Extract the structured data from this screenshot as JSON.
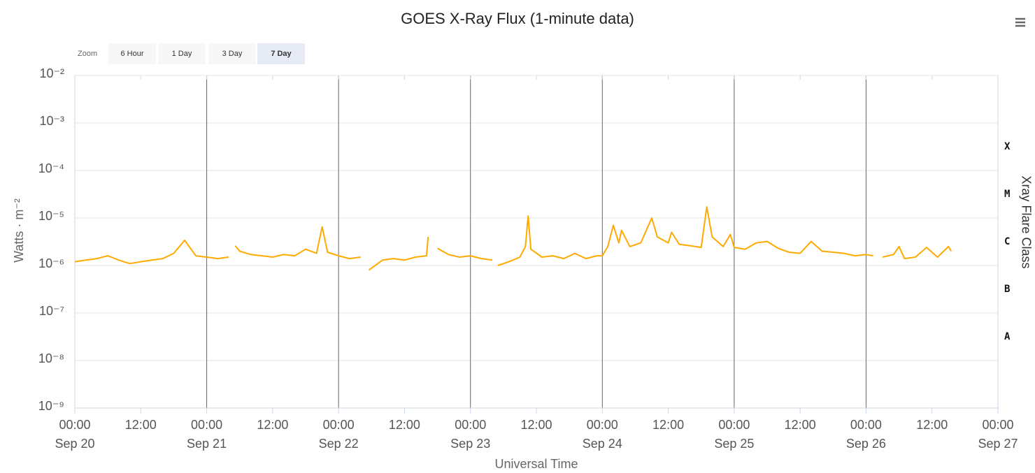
{
  "chart_data": {
    "type": "line",
    "title": "GOES X-Ray Flux (1-minute data)",
    "zoom": {
      "label": "Zoom",
      "buttons": [
        "6 Hour",
        "1 Day",
        "3 Day",
        "7 Day"
      ],
      "selected": 3
    },
    "x_axis_label": "Universal Time",
    "y_axis_label": "Watts · m⁻²",
    "y2_axis_label": "Xray Flare Class",
    "log_y": true,
    "grid": true,
    "xlim": [
      0,
      168
    ],
    "xticks": [
      {
        "value": 0,
        "label": [
          "00:00",
          "Sep 20"
        ]
      },
      {
        "value": 12,
        "label": [
          "12:00"
        ]
      },
      {
        "value": 24,
        "label": [
          "00:00",
          "Sep 21"
        ]
      },
      {
        "value": 36,
        "label": [
          "12:00"
        ]
      },
      {
        "value": 48,
        "label": [
          "00:00",
          "Sep 22"
        ]
      },
      {
        "value": 60,
        "label": [
          "12:00"
        ]
      },
      {
        "value": 72,
        "label": [
          "00:00",
          "Sep 23"
        ]
      },
      {
        "value": 84,
        "label": [
          "12:00"
        ]
      },
      {
        "value": 96,
        "label": [
          "00:00",
          "Sep 24"
        ]
      },
      {
        "value": 108,
        "label": [
          "12:00"
        ]
      },
      {
        "value": 120,
        "label": [
          "00:00",
          "Sep 25"
        ]
      },
      {
        "value": 132,
        "label": [
          "12:00"
        ]
      },
      {
        "value": 144,
        "label": [
          "00:00",
          "Sep 26"
        ]
      },
      {
        "value": 156,
        "label": [
          "12:00"
        ]
      },
      {
        "value": 168,
        "label": [
          "00:00",
          "Sep 27"
        ]
      }
    ],
    "plot_lines": [
      24,
      48,
      72,
      96,
      120,
      144
    ],
    "ylim": [
      1e-09,
      0.01
    ],
    "yticks": [
      {
        "value": 1e-09,
        "label": "10⁻⁹"
      },
      {
        "value": 1e-08,
        "label": "10⁻⁸"
      },
      {
        "value": 1e-07,
        "label": "10⁻⁷"
      },
      {
        "value": 1e-06,
        "label": "10⁻⁶"
      },
      {
        "value": 1e-05,
        "label": "10⁻⁵"
      },
      {
        "value": 0.0001,
        "label": "10⁻⁴"
      },
      {
        "value": 0.001,
        "label": "10⁻³"
      },
      {
        "value": 0.01,
        "label": "10⁻²"
      }
    ],
    "flare_classes": [
      {
        "label": "X",
        "range": [
          0.0001,
          0.001
        ]
      },
      {
        "label": "M",
        "range": [
          1e-05,
          0.0001
        ]
      },
      {
        "label": "C",
        "range": [
          1e-06,
          1e-05
        ]
      },
      {
        "label": "B",
        "range": [
          1e-07,
          1e-06
        ]
      },
      {
        "label": "A",
        "range": [
          1e-08,
          1e-07
        ]
      }
    ],
    "x": [
      0,
      2,
      4,
      6,
      8,
      10,
      12,
      14,
      16,
      18,
      20,
      22,
      24,
      26,
      28,
      28.7,
      29.2,
      30,
      32,
      34,
      36,
      38,
      40,
      42,
      44,
      45,
      46,
      48,
      50,
      52,
      52.8,
      53.5,
      56,
      58,
      60,
      62,
      64,
      64.3,
      65.5,
      66,
      68,
      70,
      72,
      74,
      76,
      76.7,
      77,
      79,
      81,
      82,
      82.5,
      83,
      85,
      87,
      89,
      91,
      93,
      95,
      96,
      97,
      98,
      99,
      99.5,
      101,
      103,
      105,
      106,
      108,
      108.6,
      110,
      112,
      114,
      115,
      116,
      118,
      119.3,
      120,
      122,
      124,
      126,
      128,
      130,
      132,
      134,
      136,
      138,
      140,
      142,
      144,
      145.3,
      145.6,
      147,
      149,
      150,
      151,
      153,
      155,
      157,
      159,
      159.5
    ],
    "series": [
      {
        "name": "Flux",
        "color": "#ffaa00",
        "values": [
          1.2e-06,
          1.3e-06,
          1.4e-06,
          1.6e-06,
          1.3e-06,
          1.1e-06,
          1.2e-06,
          1.3e-06,
          1.4e-06,
          1.8e-06,
          3.4e-06,
          1.6e-06,
          1.5e-06,
          1.4e-06,
          1.5e-06,
          null,
          2.6e-06,
          2e-06,
          1.7e-06,
          1.6e-06,
          1.5e-06,
          1.7e-06,
          1.6e-06,
          2.2e-06,
          1.8e-06,
          6.5e-06,
          1.9e-06,
          1.6e-06,
          1.4e-06,
          1.5e-06,
          null,
          8e-07,
          1.3e-06,
          1.4e-06,
          1.3e-06,
          1.5e-06,
          1.6e-06,
          4e-06,
          null,
          2.3e-06,
          1.7e-06,
          1.5e-06,
          1.6e-06,
          1.4e-06,
          1.3e-06,
          null,
          1e-06,
          1.2e-06,
          1.5e-06,
          2.5e-06,
          1.1e-05,
          2.2e-06,
          1.5e-06,
          1.6e-06,
          1.4e-06,
          1.8e-06,
          1.4e-06,
          1.6e-06,
          1.6e-06,
          2.5e-06,
          7e-06,
          3e-06,
          5.5e-06,
          2.5e-06,
          3e-06,
          1e-05,
          4e-06,
          3e-06,
          5e-06,
          2.8e-06,
          2.6e-06,
          2.4e-06,
          1.7e-05,
          4e-06,
          2.5e-06,
          4.5e-06,
          2.4e-06,
          2.2e-06,
          3e-06,
          3.2e-06,
          2.3e-06,
          1.9e-06,
          1.8e-06,
          3.2e-06,
          2e-06,
          1.9e-06,
          1.8e-06,
          1.6e-06,
          1.7e-06,
          1.6e-06,
          null,
          1.5e-06,
          1.7e-06,
          2.5e-06,
          1.4e-06,
          1.5e-06,
          2.4e-06,
          1.5e-06,
          2.5e-06,
          2e-06
        ]
      }
    ]
  }
}
